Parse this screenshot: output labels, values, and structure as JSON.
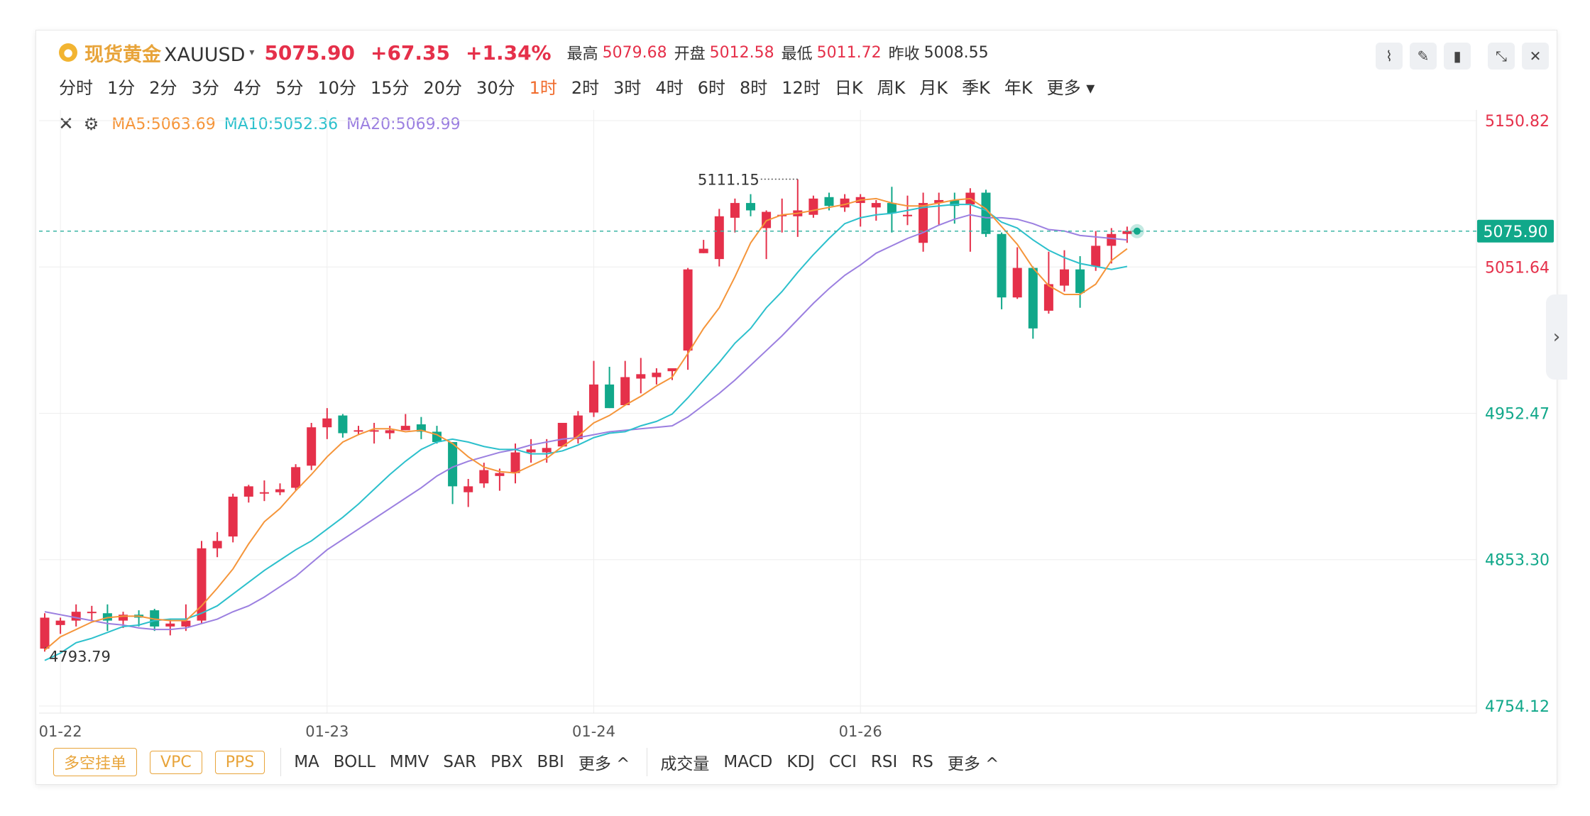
{
  "header": {
    "title": "现货黄金",
    "symbol": "XAUUSD",
    "caret": "▾",
    "price": "5075.90",
    "change": "+67.35",
    "change_pct": "+1.34%",
    "stats": [
      {
        "label": "最高",
        "value": "5079.68"
      },
      {
        "label": "开盘",
        "value": "5012.58"
      },
      {
        "label": "最低",
        "value": "5011.72"
      },
      {
        "label": "昨收",
        "value": "5008.55"
      }
    ]
  },
  "timeframes": [
    "分时",
    "1分",
    "2分",
    "3分",
    "4分",
    "5分",
    "10分",
    "15分",
    "20分",
    "30分",
    "1时",
    "2时",
    "3时",
    "4时",
    "6时",
    "8时",
    "12时",
    "日K",
    "周K",
    "月K",
    "季K",
    "年K",
    "更多"
  ],
  "active_timeframe": "1时",
  "legend": {
    "ma5": "MA5:5063.69",
    "ma10": "MA10:5052.36",
    "ma20": "MA20:5069.99"
  },
  "colors": {
    "up": "#e5304a",
    "down": "#11a88a",
    "ma5": "#f5953a",
    "ma10": "#2cc0cc",
    "ma20": "#9b7fe0",
    "accent": "#e8a43a"
  },
  "bottom": {
    "pills": [
      "多空挂单",
      "VPC",
      "PPS"
    ],
    "group1": [
      "MA",
      "BOLL",
      "MMV",
      "SAR",
      "PBX",
      "BBI",
      "更多 ^"
    ],
    "group2": [
      "成交量",
      "MACD",
      "KDJ",
      "CCI",
      "RSI",
      "RS",
      "更多 ^"
    ]
  },
  "chart_data": {
    "type": "candlestick",
    "ylim": [
      4754.12,
      5150.82
    ],
    "y_ticks": [
      "5150.82",
      "5051.64",
      "4952.47",
      "4853.30",
      "4754.12"
    ],
    "x_labels": [
      {
        "label": "01-22",
        "index": 1
      },
      {
        "label": "01-23",
        "index": 18
      },
      {
        "label": "01-24",
        "index": 35
      },
      {
        "label": "01-26",
        "index": 52
      }
    ],
    "current_price": "5075.90",
    "annotations": {
      "high": "5111.15",
      "low": "4793.79"
    },
    "candles": [
      [
        4793,
        4817,
        4791,
        4814
      ],
      [
        4809,
        4814,
        4803,
        4812
      ],
      [
        4812,
        4823,
        4808,
        4818
      ],
      [
        4818,
        4822,
        4812,
        4818
      ],
      [
        4817,
        4823,
        4805,
        4812
      ],
      [
        4812,
        4818,
        4807,
        4816
      ],
      [
        4816,
        4819,
        4808,
        4814
      ],
      [
        4819,
        4820,
        4805,
        4808
      ],
      [
        4808,
        4813,
        4802,
        4810
      ],
      [
        4808,
        4823,
        4805,
        4812
      ],
      [
        4812,
        4866,
        4810,
        4861
      ],
      [
        4861,
        4872,
        4855,
        4866
      ],
      [
        4869,
        4898,
        4865,
        4896
      ],
      [
        4896,
        4904,
        4892,
        4903
      ],
      [
        4899,
        4907,
        4893,
        4899
      ],
      [
        4899,
        4905,
        4897,
        4901
      ],
      [
        4902,
        4918,
        4900,
        4916
      ],
      [
        4917,
        4946,
        4914,
        4943
      ],
      [
        4943,
        4956,
        4935,
        4949
      ],
      [
        4951,
        4952,
        4936,
        4939
      ],
      [
        4941,
        4944,
        4938,
        4941
      ],
      [
        4941,
        4946,
        4932,
        4941
      ],
      [
        4939,
        4944,
        4935,
        4941
      ],
      [
        4941,
        4952,
        4941,
        4944
      ],
      [
        4945,
        4950,
        4935,
        4940
      ],
      [
        4940,
        4944,
        4932,
        4933
      ],
      [
        4933,
        4933,
        4891,
        4903
      ],
      [
        4899,
        4908,
        4889,
        4903
      ],
      [
        4905,
        4919,
        4902,
        4914
      ],
      [
        4910,
        4915,
        4900,
        4912
      ],
      [
        4912,
        4932,
        4905,
        4926
      ],
      [
        4926,
        4935,
        4919,
        4928
      ],
      [
        4926,
        4935,
        4919,
        4929
      ],
      [
        4930,
        4943,
        4930,
        4946
      ],
      [
        4935,
        4954,
        4932,
        4951
      ],
      [
        4953,
        4988,
        4950,
        4972
      ],
      [
        4972,
        4984,
        4956,
        4956
      ],
      [
        4958,
        4988,
        4958,
        4977
      ],
      [
        4976,
        4990,
        4966,
        4979
      ],
      [
        4977,
        4983,
        4972,
        4980
      ],
      [
        4981,
        4983,
        4975,
        4983
      ],
      [
        4995,
        5051,
        4982,
        5050
      ],
      [
        5061,
        5070,
        5061,
        5064
      ],
      [
        5057,
        5091,
        5052,
        5086
      ],
      [
        5085,
        5098,
        5075,
        5095
      ],
      [
        5095,
        5101,
        5086,
        5090
      ],
      [
        5078,
        5090,
        5057,
        5089
      ],
      [
        5086,
        5098,
        5075,
        5087
      ],
      [
        5086,
        5111,
        5072,
        5090
      ],
      [
        5087,
        5100,
        5085,
        5098
      ],
      [
        5099,
        5102,
        5090,
        5093
      ],
      [
        5092,
        5101,
        5089,
        5098
      ],
      [
        5095,
        5101,
        5079,
        5099
      ],
      [
        5092,
        5097,
        5083,
        5095
      ],
      [
        5095,
        5106,
        5075,
        5088
      ],
      [
        5086,
        5100,
        5080,
        5087
      ],
      [
        5068,
        5102,
        5062,
        5095
      ],
      [
        5095,
        5102,
        5080,
        5097
      ],
      [
        5097,
        5102,
        5081,
        5093
      ],
      [
        5094,
        5105,
        5062,
        5102
      ],
      [
        5102,
        5104,
        5072,
        5074
      ],
      [
        5074,
        5075,
        5023,
        5031
      ],
      [
        5031,
        5065,
        5030,
        5051
      ],
      [
        5051,
        5052,
        5003,
        5010
      ],
      [
        5022,
        5062,
        5020,
        5040
      ],
      [
        5039,
        5063,
        5035,
        5050
      ],
      [
        5050,
        5059,
        5024,
        5034
      ],
      [
        5052,
        5076,
        5049,
        5066
      ],
      [
        5066,
        5078,
        5054,
        5074
      ],
      [
        5074,
        5079,
        5068,
        5076
      ]
    ],
    "ma5": [
      4792,
      4801,
      4806,
      4811,
      4814,
      4815,
      4815,
      4813,
      4812,
      4812,
      4822,
      4834,
      4847,
      4864,
      4879,
      4888,
      4900,
      4911,
      4923,
      4933,
      4938,
      4942,
      4942,
      4940,
      4941,
      4938,
      4932,
      4923,
      4916,
      4913,
      4912,
      4917,
      4922,
      4930,
      4937,
      4946,
      4951,
      4958,
      4964,
      4971,
      4977,
      4993,
      5010,
      5024,
      5045,
      5068,
      5083,
      5087,
      5088,
      5090,
      5092,
      5094,
      5097,
      5098,
      5095,
      5093,
      5093,
      5095,
      5097,
      5098,
      5091,
      5079,
      5067,
      5051,
      5039,
      5033,
      5033,
      5040,
      5056,
      5064
    ],
    "ma10": [
      4785,
      4790,
      4797,
      4800,
      4804,
      4808,
      4809,
      4812,
      4813,
      4813,
      4817,
      4822,
      4830,
      4838,
      4846,
      4853,
      4860,
      4866,
      4874,
      4882,
      4891,
      4901,
      4911,
      4920,
      4928,
      4933,
      4935,
      4933,
      4930,
      4928,
      4928,
      4925,
      4925,
      4927,
      4931,
      4936,
      4939,
      4940,
      4944,
      4947,
      4952,
      4963,
      4975,
      4987,
      5000,
      5010,
      5024,
      5035,
      5048,
      5060,
      5071,
      5081,
      5085,
      5087,
      5088,
      5090,
      5092,
      5093,
      5094,
      5094,
      5090,
      5082,
      5078,
      5070,
      5063,
      5058,
      5054,
      5052,
      5050,
      5052
    ],
    "ma20": [
      4818,
      4816,
      4814,
      4812,
      4810,
      4809,
      4807,
      4806,
      4806,
      4807,
      4810,
      4813,
      4818,
      4822,
      4828,
      4835,
      4842,
      4851,
      4860,
      4867,
      4874,
      4881,
      4888,
      4895,
      4902,
      4910,
      4916,
      4920,
      4923,
      4926,
      4928,
      4931,
      4933,
      4935,
      4936,
      4938,
      4940,
      4941,
      4942,
      4943,
      4944,
      4950,
      4958,
      4966,
      4975,
      4985,
      4995,
      5005,
      5016,
      5027,
      5037,
      5046,
      5053,
      5061,
      5066,
      5071,
      5075,
      5080,
      5084,
      5087,
      5085,
      5085,
      5084,
      5081,
      5077,
      5076,
      5073,
      5072,
      5071,
      5070
    ]
  }
}
